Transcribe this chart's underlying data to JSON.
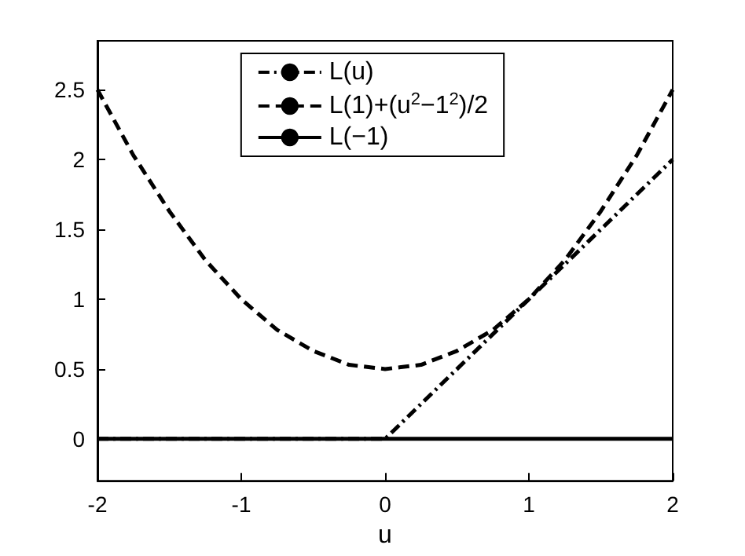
{
  "chart_data": {
    "type": "line",
    "xlabel": "u",
    "xlim": [
      -2,
      2
    ],
    "xticks": [
      -2,
      -1,
      0,
      1,
      2
    ],
    "ylim": [
      -0.3,
      2.85
    ],
    "yticks": [
      0,
      0.5,
      1,
      1.5,
      2,
      2.5
    ],
    "grid": false,
    "legend": "top",
    "marker": "none",
    "series": [
      {
        "name": "L(u)",
        "color": "#000000",
        "line_style": "dashdot",
        "x": [
          -2,
          0,
          2
        ],
        "values": [
          0,
          0,
          2
        ]
      },
      {
        "name": "L(1)+(u$^{2}$−1$^{2}$)/2",
        "color": "#000000",
        "line_style": "dashed",
        "x": [
          -2,
          -1.75,
          -1.5,
          -1.25,
          -1,
          -0.75,
          -0.5,
          -0.25,
          0,
          0.25,
          0.5,
          0.75,
          1,
          1.25,
          1.5,
          1.75,
          2
        ],
        "values": [
          2.5,
          2.03,
          1.63,
          1.28,
          1,
          0.78,
          0.63,
          0.53,
          0.5,
          0.53,
          0.63,
          0.78,
          1,
          1.28,
          1.63,
          2.03,
          2.5
        ]
      },
      {
        "name": "L(−1)",
        "color": "#000000",
        "line_style": "solid",
        "x": [
          -2,
          2
        ],
        "values": [
          0,
          0
        ]
      }
    ]
  }
}
